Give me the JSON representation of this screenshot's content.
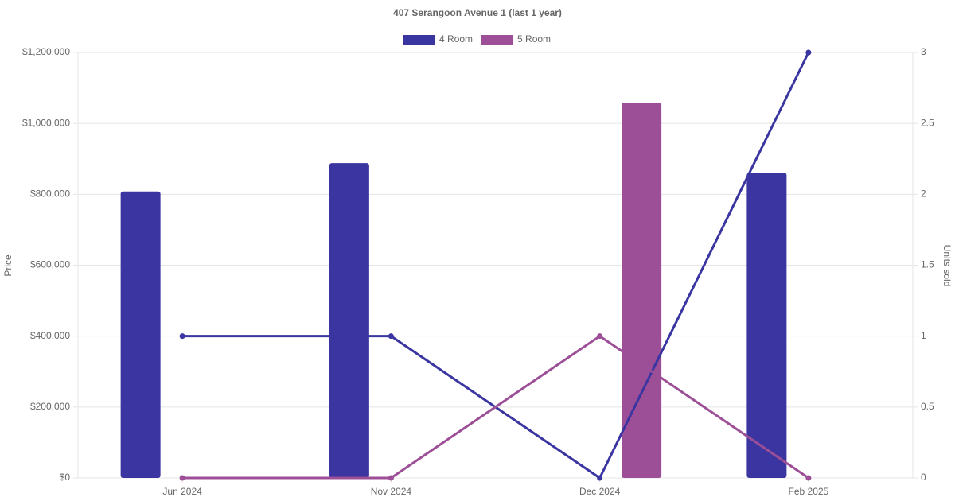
{
  "chart_data": {
    "type": "bar-line",
    "title": "407 Serangoon Avenue 1 (last 1 year)",
    "y_label": "Price",
    "y2_label": "Units sold",
    "categories": [
      "Jun 2024",
      "Nov 2024",
      "Dec 2024",
      "Feb 2025"
    ],
    "series": [
      {
        "name": "4 Room",
        "color": "#3a35a0",
        "values": [
          808000,
          888000,
          null,
          861000
        ],
        "units_sold": [
          1,
          1,
          0,
          3
        ]
      },
      {
        "name": "5 Room",
        "color": "#9c4f96",
        "values": [
          null,
          null,
          1058000,
          null
        ],
        "units_sold": [
          0,
          0,
          1,
          0
        ]
      }
    ],
    "ylim": [
      0,
      1200000
    ],
    "yticks": [
      {
        "value": 0,
        "label": "$0"
      },
      {
        "value": 200000,
        "label": "$200,000"
      },
      {
        "value": 400000,
        "label": "$400,000"
      },
      {
        "value": 600000,
        "label": "$600,000"
      },
      {
        "value": 800000,
        "label": "$800,000"
      },
      {
        "value": 1000000,
        "label": "$1,000,000"
      },
      {
        "value": 1200000,
        "label": "$1,200,000"
      }
    ],
    "y2lim": [
      0,
      3
    ],
    "y2ticks": [
      0,
      0.5,
      1,
      1.5,
      2,
      2.5,
      3
    ],
    "grid": true
  }
}
